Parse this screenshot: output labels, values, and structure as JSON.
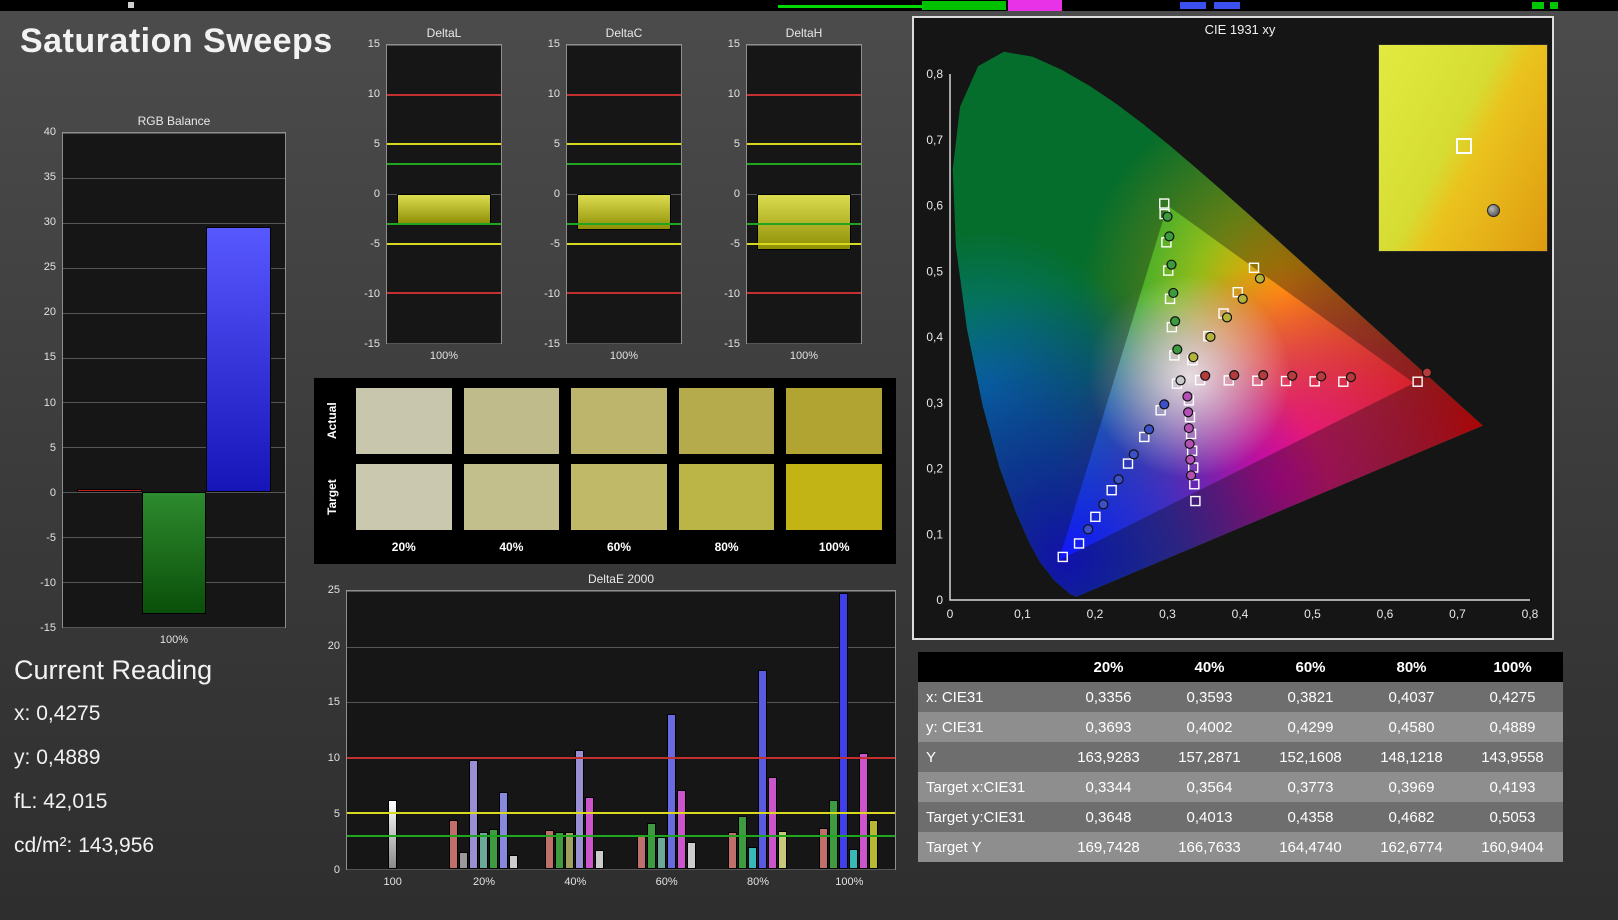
{
  "app": {
    "title": "Saturation Sweeps"
  },
  "current_reading": {
    "heading": "Current Reading",
    "lines": [
      {
        "label": "x:",
        "value": "0,4275"
      },
      {
        "label": "y:",
        "value": "0,4889"
      },
      {
        "label": "fL:",
        "value": "42,015"
      },
      {
        "label": "cd/m²:",
        "value": "143,956"
      }
    ]
  },
  "swatch_panel": {
    "row_labels": [
      "Actual",
      "Target"
    ],
    "column_labels": [
      "20%",
      "40%",
      "60%",
      "80%",
      "100%"
    ],
    "actual_colors": [
      "#c8c6ad",
      "#c0bb8a",
      "#bcb56b",
      "#b5aa4c",
      "#b1a433"
    ],
    "target_colors": [
      "#cac8ae",
      "#c3bf8c",
      "#c0ba68",
      "#bbb447",
      "#c2b414"
    ]
  },
  "table": {
    "header": [
      "",
      "20%",
      "40%",
      "60%",
      "80%",
      "100%"
    ],
    "rows": [
      {
        "label": "x: CIE31",
        "values": [
          "0,3356",
          "0,3593",
          "0,3821",
          "0,4037",
          "0,4275"
        ]
      },
      {
        "label": "y: CIE31",
        "values": [
          "0,3693",
          "0,4002",
          "0,4299",
          "0,4580",
          "0,4889"
        ]
      },
      {
        "label": "Y",
        "values": [
          "163,9283",
          "157,2871",
          "152,1608",
          "148,1218",
          "143,9558"
        ]
      },
      {
        "label": "Target x:CIE31",
        "values": [
          "0,3344",
          "0,3564",
          "0,3773",
          "0,3969",
          "0,4193"
        ]
      },
      {
        "label": "Target y:CIE31",
        "values": [
          "0,3648",
          "0,4013",
          "0,4358",
          "0,4682",
          "0,5053"
        ]
      },
      {
        "label": "Target Y",
        "values": [
          "169,7428",
          "166,7633",
          "164,4740",
          "162,6774",
          "160,9404"
        ]
      }
    ]
  },
  "chart_data": {
    "rgb_balance": {
      "type": "bar",
      "title": "RGB Balance",
      "ymin": -15,
      "ymax": 40,
      "ystep": 5,
      "barPct": 29,
      "refs": [],
      "groups": [
        {
          "label": "100%",
          "bars": [
            {
              "name": "red-bar",
              "v": 0.4,
              "c": "linear-gradient(180deg,#e03030,#a01010)"
            },
            {
              "name": "green-bar",
              "v": -13.6,
              "c": "linear-gradient(180deg,#2e8b2e,#0a4f0a)"
            },
            {
              "name": "blue-bar",
              "v": 29.5,
              "c": "linear-gradient(180deg,#5858ff,#1515b8)"
            }
          ]
        }
      ]
    },
    "deltaL": {
      "type": "bar",
      "title": "DeltaL",
      "ymin": -15,
      "ymax": 15,
      "ystep": 5,
      "barPct": 82,
      "refs": [
        {
          "v": 10,
          "c": "#c23030"
        },
        {
          "v": -10,
          "c": "#c23030"
        },
        {
          "v": 5,
          "c": "#d8d820"
        },
        {
          "v": -5,
          "c": "#d8d820"
        },
        {
          "v": 3,
          "c": "#1fa51f"
        },
        {
          "v": -3,
          "c": "#1fa51f"
        }
      ],
      "groups": [
        {
          "label": "100%",
          "bars": [
            {
              "name": "deltaL-bar",
              "v": -3.1,
              "c": "linear-gradient(180deg,#dcdc50,#8f8f06)"
            }
          ]
        }
      ]
    },
    "deltaC": {
      "type": "bar",
      "title": "DeltaC",
      "ymin": -15,
      "ymax": 15,
      "ystep": 5,
      "barPct": 82,
      "refs": [
        {
          "v": 10,
          "c": "#c23030"
        },
        {
          "v": -10,
          "c": "#c23030"
        },
        {
          "v": 5,
          "c": "#d8d820"
        },
        {
          "v": -5,
          "c": "#d8d820"
        },
        {
          "v": 3,
          "c": "#1fa51f"
        },
        {
          "v": -3,
          "c": "#1fa51f"
        }
      ],
      "groups": [
        {
          "label": "100%",
          "bars": [
            {
              "name": "deltaC-bar",
              "v": -3.6,
              "c": "linear-gradient(180deg,#dcdc50,#8f8f06)"
            }
          ]
        }
      ]
    },
    "deltaH": {
      "type": "bar",
      "title": "DeltaH",
      "ymin": -15,
      "ymax": 15,
      "ystep": 5,
      "barPct": 82,
      "refs": [
        {
          "v": 10,
          "c": "#c23030"
        },
        {
          "v": -10,
          "c": "#c23030"
        },
        {
          "v": 5,
          "c": "#d8d820"
        },
        {
          "v": -5,
          "c": "#d8d820"
        },
        {
          "v": 3,
          "c": "#1fa51f"
        },
        {
          "v": -3,
          "c": "#1fa51f"
        }
      ],
      "groups": [
        {
          "label": "100%",
          "bars": [
            {
              "name": "deltaH-bar",
              "v": -5.6,
              "c": "linear-gradient(180deg,#dcdc50,#8f8f06)"
            }
          ]
        }
      ]
    },
    "deltaE2000": {
      "type": "bar",
      "title": "DeltaE 2000",
      "ymin": 0,
      "ymax": 25,
      "ystep": 5,
      "barPx": 9,
      "refs": [
        {
          "v": 10,
          "c": "#c23030"
        },
        {
          "v": 5,
          "c": "#d8d820"
        },
        {
          "v": 3,
          "c": "#1fa51f"
        }
      ],
      "groups": [
        {
          "label": "100",
          "bars": [
            {
              "v": 6.2,
              "c": "linear-gradient(180deg,#ffffff,#8a8a8a)"
            }
          ]
        },
        {
          "label": "20%",
          "bars": [
            {
              "v": 4.4,
              "c": "#c0706a"
            },
            {
              "v": 1.5,
              "c": "#9a9a9a"
            },
            {
              "v": 9.8,
              "c": "#9b8fd4"
            },
            {
              "v": 3.3,
              "c": "#6ba898"
            },
            {
              "v": 3.6,
              "c": "#3f9b3f"
            },
            {
              "v": 6.9,
              "c": "#8789dd"
            },
            {
              "v": 1.3,
              "c": "#cccccc"
            }
          ]
        },
        {
          "label": "40%",
          "bars": [
            {
              "v": 3.5,
              "c": "#c0706a"
            },
            {
              "v": 3.3,
              "c": "#3f9b3f"
            },
            {
              "v": 3.3,
              "c": "#a0a060"
            },
            {
              "v": 10.7,
              "c": "#9b8fd4"
            },
            {
              "v": 6.5,
              "c": "#cc55cc"
            },
            {
              "v": 1.7,
              "c": "#cccccc"
            }
          ]
        },
        {
          "label": "60%",
          "bars": [
            {
              "v": 3.0,
              "c": "#c0706a"
            },
            {
              "v": 4.1,
              "c": "#3f9b3f"
            },
            {
              "v": 2.9,
              "c": "#6ba898"
            },
            {
              "v": 13.9,
              "c": "#6a6ae0"
            },
            {
              "v": 7.1,
              "c": "#cc55cc"
            },
            {
              "v": 2.4,
              "c": "#cccccc"
            }
          ]
        },
        {
          "label": "80%",
          "bars": [
            {
              "v": 3.3,
              "c": "#c0706a"
            },
            {
              "v": 4.8,
              "c": "#3f9b3f"
            },
            {
              "v": 2.0,
              "c": "#39b8b8"
            },
            {
              "v": 17.9,
              "c": "#5b5be0"
            },
            {
              "v": 8.3,
              "c": "#cc55cc"
            },
            {
              "v": 3.4,
              "c": "#c8c87a"
            }
          ]
        },
        {
          "label": "100%",
          "bars": [
            {
              "v": 3.7,
              "c": "#c0706a"
            },
            {
              "v": 6.2,
              "c": "#3f9b3f"
            },
            {
              "v": 24.8,
              "c": "#4040e8"
            },
            {
              "v": 1.8,
              "c": "#39b8b8"
            },
            {
              "v": 10.4,
              "c": "#cc55cc"
            },
            {
              "v": 4.4,
              "c": "#b8b832"
            }
          ]
        }
      ]
    },
    "cie": {
      "type": "scatter",
      "title": "CIE 1931 xy",
      "xlim": [
        0,
        0.8
      ],
      "ylim": [
        0,
        0.8
      ],
      "xticks": [
        "0",
        "0,1",
        "0,2",
        "0,3",
        "0,4",
        "0,5",
        "0,6",
        "0,7",
        "0,8"
      ],
      "yticks": [
        "0",
        "0,1",
        "0,2",
        "0,3",
        "0,4",
        "0,5",
        "0,6",
        "0,7",
        "0,8"
      ],
      "gamut_triangle": [
        [
          0.64,
          0.33
        ],
        [
          0.3,
          0.6
        ],
        [
          0.15,
          0.06
        ]
      ],
      "locus": [
        [
          0.1741,
          0.005
        ],
        [
          0.166,
          0.009
        ],
        [
          0.1566,
          0.0177
        ],
        [
          0.144,
          0.0297
        ],
        [
          0.1241,
          0.0578
        ],
        [
          0.1096,
          0.0868
        ],
        [
          0.0913,
          0.1327
        ],
        [
          0.0687,
          0.2007
        ],
        [
          0.0454,
          0.295
        ],
        [
          0.0235,
          0.4127
        ],
        [
          0.0082,
          0.5384
        ],
        [
          0.0039,
          0.6548
        ],
        [
          0.0139,
          0.7502
        ],
        [
          0.0389,
          0.812
        ],
        [
          0.0743,
          0.8338
        ],
        [
          0.1142,
          0.8262
        ],
        [
          0.1547,
          0.8059
        ],
        [
          0.1929,
          0.7816
        ],
        [
          0.2296,
          0.7543
        ],
        [
          0.2658,
          0.7243
        ],
        [
          0.3016,
          0.6923
        ],
        [
          0.3373,
          0.6589
        ],
        [
          0.3731,
          0.6245
        ],
        [
          0.4087,
          0.5896
        ],
        [
          0.4441,
          0.5547
        ],
        [
          0.4788,
          0.5202
        ],
        [
          0.5125,
          0.4866
        ],
        [
          0.5448,
          0.4544
        ],
        [
          0.5752,
          0.4242
        ],
        [
          0.6029,
          0.3965
        ],
        [
          0.627,
          0.3725
        ],
        [
          0.6482,
          0.3514
        ],
        [
          0.6658,
          0.334
        ],
        [
          0.6915,
          0.3083
        ],
        [
          0.7079,
          0.292
        ],
        [
          0.719,
          0.2809
        ],
        [
          0.7347,
          0.2653
        ]
      ],
      "series": [
        {
          "name": "white",
          "color": "#c8c8c8",
          "targets": [
            [
              0.313,
              0.329
            ]
          ],
          "measured": [
            [
              0.318,
              0.334
            ]
          ]
        },
        {
          "name": "red",
          "color": "#b43c3c",
          "targets": [
            [
              0.345,
              0.3345
            ],
            [
              0.3845,
              0.334
            ],
            [
              0.424,
              0.3335
            ],
            [
              0.4635,
              0.333
            ],
            [
              0.503,
              0.3325
            ],
            [
              0.5425,
              0.332
            ],
            [
              0.645,
              0.332
            ]
          ],
          "measured": [
            [
              0.352,
              0.341
            ],
            [
              0.392,
              0.342
            ],
            [
              0.432,
              0.342
            ],
            [
              0.472,
              0.341
            ],
            [
              0.512,
              0.34
            ],
            [
              0.553,
              0.339
            ],
            [
              0.658,
              0.346
            ]
          ]
        },
        {
          "name": "green",
          "color": "#3c9b3c",
          "targets": [
            [
              0.3095,
              0.372
            ],
            [
              0.306,
              0.415
            ],
            [
              0.3035,
              0.458
            ],
            [
              0.301,
              0.501
            ],
            [
              0.2985,
              0.544
            ],
            [
              0.296,
              0.587
            ],
            [
              0.2955,
              0.603
            ]
          ],
          "measured": [
            [
              0.3135,
              0.381
            ],
            [
              0.3105,
              0.424
            ],
            [
              0.308,
              0.467
            ],
            [
              0.3055,
              0.51
            ],
            [
              0.3025,
              0.553
            ],
            [
              0.3,
              0.583
            ]
          ]
        },
        {
          "name": "blue",
          "color": "#3c50c8",
          "targets": [
            [
              0.2905,
              0.2885
            ],
            [
              0.268,
              0.248
            ],
            [
              0.2455,
              0.2075
            ],
            [
              0.223,
              0.167
            ],
            [
              0.2005,
              0.1265
            ],
            [
              0.178,
              0.086
            ],
            [
              0.1555,
              0.0655
            ]
          ],
          "measured": [
            [
              0.2955,
              0.2975
            ],
            [
              0.2745,
              0.2595
            ],
            [
              0.2535,
              0.2215
            ],
            [
              0.2325,
              0.1835
            ],
            [
              0.2115,
              0.1455
            ],
            [
              0.1905,
              0.1075
            ]
          ]
        },
        {
          "name": "magenta",
          "color": "#b450b4",
          "targets": [
            [
              0.3295,
              0.3035
            ],
            [
              0.331,
              0.278
            ],
            [
              0.3325,
              0.2525
            ],
            [
              0.334,
              0.227
            ],
            [
              0.3355,
              0.2015
            ],
            [
              0.337,
              0.176
            ],
            [
              0.3385,
              0.1505
            ]
          ],
          "measured": [
            [
              0.3275,
              0.3095
            ],
            [
              0.3285,
              0.2855
            ],
            [
              0.3295,
              0.2615
            ],
            [
              0.3305,
              0.2375
            ],
            [
              0.3315,
              0.2135
            ],
            [
              0.3325,
              0.1895
            ]
          ]
        },
        {
          "name": "yellow",
          "color": "#b4b43c",
          "targets": [
            [
              0.3344,
              0.3648
            ],
            [
              0.3564,
              0.4013
            ],
            [
              0.3773,
              0.4358
            ],
            [
              0.3969,
              0.4682
            ],
            [
              0.4193,
              0.5053
            ]
          ],
          "measured": [
            [
              0.3356,
              0.3693
            ],
            [
              0.3593,
              0.4002
            ],
            [
              0.3821,
              0.4299
            ],
            [
              0.4037,
              0.458
            ],
            [
              0.4275,
              0.4889
            ]
          ]
        }
      ]
    }
  }
}
